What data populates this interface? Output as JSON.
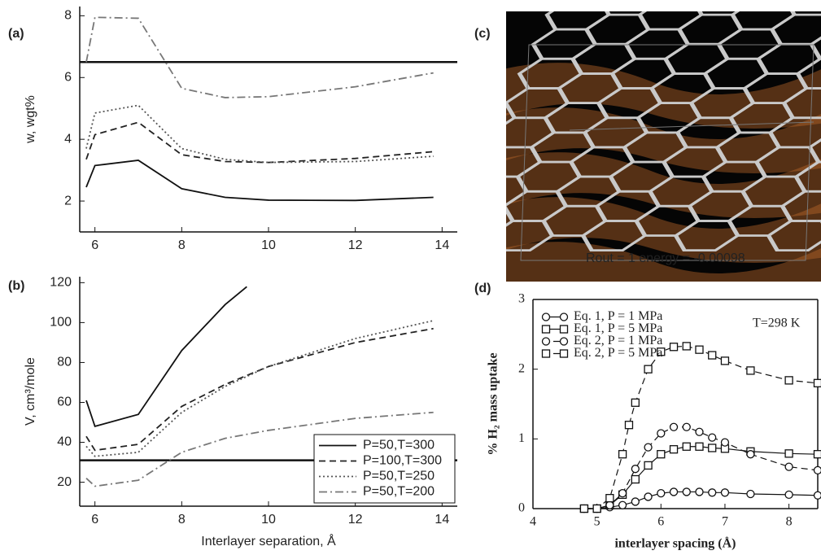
{
  "chart_data": [
    {
      "type": "line",
      "label": "(a)",
      "ylabel": "w, wgt%",
      "xlim": [
        5.65,
        14.35
      ],
      "ylim": [
        1,
        8.3
      ],
      "xticks": [
        6,
        8,
        10,
        12,
        14
      ],
      "yticks": [
        2,
        4,
        6,
        8
      ],
      "reference_line": 6.5,
      "series": [
        {
          "name": "P=50,T=300",
          "color": "#111111",
          "linestyle": "solid",
          "x": [
            5.8,
            6,
            7,
            8,
            9,
            10,
            12,
            13.8
          ],
          "values": [
            2.45,
            3.15,
            3.32,
            2.4,
            2.12,
            2.03,
            2.02,
            2.12
          ]
        },
        {
          "name": "P=100,T=300",
          "color": "#222222",
          "linestyle": "dashed",
          "x": [
            5.8,
            6,
            7,
            8,
            9,
            10,
            12,
            13.8
          ],
          "values": [
            3.35,
            4.15,
            4.55,
            3.5,
            3.28,
            3.25,
            3.38,
            3.6
          ]
        },
        {
          "name": "P=50,T=250",
          "color": "#555555",
          "linestyle": "dotted",
          "x": [
            5.8,
            6,
            7,
            8,
            9,
            10,
            12,
            13.8
          ],
          "values": [
            3.7,
            4.85,
            5.1,
            3.7,
            3.35,
            3.25,
            3.28,
            3.45
          ]
        },
        {
          "name": "P=50,T=200",
          "color": "#777777",
          "linestyle": "dashdot",
          "x": [
            5.8,
            6,
            7,
            8,
            9,
            10,
            12,
            13.8
          ],
          "values": [
            6.5,
            7.95,
            7.92,
            5.65,
            5.35,
            5.38,
            5.7,
            6.15
          ]
        }
      ]
    },
    {
      "type": "line",
      "label": "(b)",
      "ylabel": "V, cm³/mole",
      "xlabel": "Interlayer separation, Å",
      "xlim": [
        5.65,
        14.35
      ],
      "ylim": [
        8,
        123
      ],
      "xticks": [
        6,
        8,
        10,
        12,
        14
      ],
      "yticks": [
        20,
        40,
        60,
        80,
        100,
        120
      ],
      "reference_line": 31,
      "legend": "lower right",
      "series": [
        {
          "name": "P=50,T=300",
          "color": "#111111",
          "linestyle": "solid",
          "x": [
            5.8,
            6,
            7,
            8,
            9,
            9.5
          ],
          "values": [
            61,
            48,
            54,
            86,
            109,
            118
          ]
        },
        {
          "name": "P=100,T=300",
          "color": "#222222",
          "linestyle": "dashed",
          "x": [
            5.8,
            6,
            7,
            8,
            9,
            10,
            12,
            13.8
          ],
          "values": [
            43,
            36,
            39,
            58,
            69,
            78,
            90,
            97
          ]
        },
        {
          "name": "P=50,T=250",
          "color": "#555555",
          "linestyle": "dotted",
          "x": [
            5.8,
            6,
            7,
            8,
            9,
            10,
            12,
            13.8
          ],
          "values": [
            38,
            33,
            35,
            55,
            68,
            78,
            92,
            101
          ]
        },
        {
          "name": "P=50,T=200",
          "color": "#777777",
          "linestyle": "dashdot",
          "x": [
            5.8,
            6,
            7,
            8,
            9,
            10,
            12,
            13.8
          ],
          "values": [
            22,
            18,
            21,
            35,
            42,
            46,
            52,
            55
          ]
        }
      ]
    },
    {
      "type": "image",
      "label": "(c)",
      "caption": "Rout =      1 energy =      -0.00098"
    },
    {
      "type": "line",
      "label": "(d)",
      "ylabel": "% H₂ mass uptake",
      "xlabel": "interlayer spacing (Å)",
      "annotation": "T=298 K",
      "xlim": [
        4,
        8.45
      ],
      "ylim": [
        0,
        3
      ],
      "xticks": [
        4,
        5,
        6,
        7,
        8
      ],
      "yticks": [
        0,
        1,
        2,
        3
      ],
      "legend": "upper left",
      "series": [
        {
          "name": "Eq. 1, P = 1 MPa",
          "color": "#111111",
          "linestyle": "solid",
          "marker": "circle",
          "x": [
            4.8,
            5,
            5.2,
            5.4,
            5.6,
            5.8,
            6,
            6.2,
            6.4,
            6.6,
            6.8,
            7,
            7.4,
            8,
            8.45
          ],
          "values": [
            0,
            0,
            0.02,
            0.05,
            0.1,
            0.17,
            0.22,
            0.24,
            0.24,
            0.24,
            0.23,
            0.23,
            0.21,
            0.2,
            0.19
          ]
        },
        {
          "name": "Eq. 1, P = 5 MPa",
          "color": "#111111",
          "linestyle": "solid",
          "marker": "square",
          "x": [
            4.8,
            5,
            5.2,
            5.4,
            5.6,
            5.8,
            6,
            6.2,
            6.4,
            6.6,
            6.8,
            7,
            7.4,
            8,
            8.45
          ],
          "values": [
            0,
            0,
            0.05,
            0.2,
            0.42,
            0.62,
            0.78,
            0.85,
            0.89,
            0.89,
            0.87,
            0.86,
            0.82,
            0.79,
            0.78
          ]
        },
        {
          "name": "Eq. 2, P = 1 MPa",
          "color": "#111111",
          "linestyle": "dashed",
          "marker": "circle",
          "x": [
            4.8,
            5,
            5.2,
            5.4,
            5.6,
            5.8,
            6,
            6.2,
            6.4,
            6.6,
            6.8,
            7,
            7.4,
            8,
            8.45
          ],
          "values": [
            0,
            0,
            0.05,
            0.22,
            0.57,
            0.88,
            1.08,
            1.17,
            1.17,
            1.1,
            1.02,
            0.95,
            0.78,
            0.6,
            0.55
          ]
        },
        {
          "name": "Eq. 2, P = 5 MPa",
          "color": "#111111",
          "linestyle": "dashed",
          "marker": "square",
          "x": [
            4.8,
            5,
            5.2,
            5.4,
            5.5,
            5.6,
            5.8,
            6,
            6.2,
            6.4,
            6.6,
            6.8,
            7,
            7.4,
            8,
            8.45
          ],
          "values": [
            0,
            0,
            0.15,
            0.78,
            1.2,
            1.52,
            2.0,
            2.25,
            2.32,
            2.33,
            2.28,
            2.2,
            2.12,
            1.98,
            1.84,
            1.8
          ]
        }
      ]
    }
  ]
}
